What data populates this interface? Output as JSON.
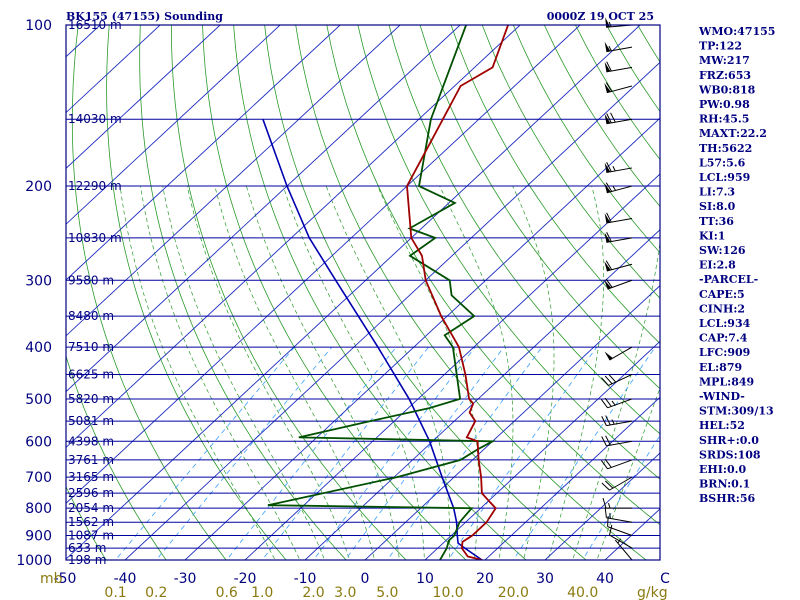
{
  "header": {
    "station": "BK155 (47155) Sounding",
    "time": "0000Z 19 OCT 25"
  },
  "chart_data": {
    "type": "skew-t",
    "pressure_levels": [
      {
        "p": 100,
        "label": "100",
        "height": "16510 m"
      },
      {
        "p": 150,
        "label": "",
        "height": "14030 m"
      },
      {
        "p": 200,
        "label": "200",
        "height": "12290 m"
      },
      {
        "p": 250,
        "label": "",
        "height": "10830 m"
      },
      {
        "p": 300,
        "label": "300",
        "height": "9580 m"
      },
      {
        "p": 350,
        "label": "",
        "height": "8480 m"
      },
      {
        "p": 400,
        "label": "400",
        "height": "7510 m"
      },
      {
        "p": 450,
        "label": "",
        "height": "6625 m"
      },
      {
        "p": 500,
        "label": "500",
        "height": "5820 m"
      },
      {
        "p": 550,
        "label": "",
        "height": "5081 m"
      },
      {
        "p": 600,
        "label": "600",
        "height": "4398 m"
      },
      {
        "p": 650,
        "label": "",
        "height": "3761 m"
      },
      {
        "p": 700,
        "label": "700",
        "height": "3165 m"
      },
      {
        "p": 750,
        "label": "",
        "height": "2596 m"
      },
      {
        "p": 800,
        "label": "800",
        "height": "2054 m"
      },
      {
        "p": 850,
        "label": "",
        "height": "1562 m"
      },
      {
        "p": 900,
        "label": "900",
        "height": "1087 m"
      },
      {
        "p": 950,
        "label": "",
        "height": "633 m"
      },
      {
        "p": 1000,
        "label": "1000",
        "height": "198 m"
      }
    ],
    "pressure_unit": "mb",
    "temp_ticks": [
      {
        "t": -50,
        "label": "-50"
      },
      {
        "t": -40,
        "label": "-40"
      },
      {
        "t": -30,
        "label": "-30"
      },
      {
        "t": -20,
        "label": "-20"
      },
      {
        "t": -10,
        "label": "-10"
      },
      {
        "t": 0,
        "label": "0"
      },
      {
        "t": 10,
        "label": "10"
      },
      {
        "t": 20,
        "label": "20"
      },
      {
        "t": 30,
        "label": "30"
      },
      {
        "t": 40,
        "label": "40"
      },
      {
        "t": 50,
        "label": "C"
      }
    ],
    "mixing_ratio_labels": [
      "0.1",
      "0.2",
      "0.6",
      "1.0",
      "2.0",
      "3.0",
      "5.0",
      "10.0",
      "20.0",
      "40.0"
    ],
    "mixing_ratio_values": [
      0.1,
      0.2,
      0.6,
      1.0,
      2.0,
      3.0,
      5.0,
      10.0,
      20.0,
      40.0
    ],
    "mixing_ratio_unit": "g/kg",
    "temperature": [
      {
        "p": 1000,
        "t": 19.5
      },
      {
        "p": 985,
        "t": 16.5
      },
      {
        "p": 950,
        "t": 14.0
      },
      {
        "p": 925,
        "t": 13.0
      },
      {
        "p": 900,
        "t": 13.5
      },
      {
        "p": 850,
        "t": 13.5
      },
      {
        "p": 800,
        "t": 12.5
      },
      {
        "p": 780,
        "t": 10.5
      },
      {
        "p": 750,
        "t": 7.5
      },
      {
        "p": 700,
        "t": 4.5
      },
      {
        "p": 650,
        "t": 1.0
      },
      {
        "p": 600,
        "t": -2.5
      },
      {
        "p": 590,
        "t": -5.0
      },
      {
        "p": 550,
        "t": -6.5
      },
      {
        "p": 530,
        "t": -9.0
      },
      {
        "p": 510,
        "t": -10.0
      },
      {
        "p": 500,
        "t": -11.5
      },
      {
        "p": 450,
        "t": -16.5
      },
      {
        "p": 400,
        "t": -22.5
      },
      {
        "p": 350,
        "t": -31.0
      },
      {
        "p": 300,
        "t": -40.0
      },
      {
        "p": 270,
        "t": -45.0
      },
      {
        "p": 250,
        "t": -50.0
      },
      {
        "p": 200,
        "t": -60.0
      },
      {
        "p": 150,
        "t": -66.0
      },
      {
        "p": 130,
        "t": -69.0
      },
      {
        "p": 120,
        "t": -67.0
      },
      {
        "p": 100,
        "t": -72.0
      }
    ],
    "dewpoint": [
      {
        "p": 1000,
        "t": 12.5
      },
      {
        "p": 950,
        "t": 11.5
      },
      {
        "p": 920,
        "t": 10.5
      },
      {
        "p": 900,
        "t": 10.5
      },
      {
        "p": 850,
        "t": 9.0
      },
      {
        "p": 800,
        "t": 8.5
      },
      {
        "p": 790,
        "t": -26.0
      },
      {
        "p": 700,
        "t": -9.5
      },
      {
        "p": 650,
        "t": -2.0
      },
      {
        "p": 620,
        "t": -1.0
      },
      {
        "p": 600,
        "t": 0.0
      },
      {
        "p": 590,
        "t": -33.0
      },
      {
        "p": 550,
        "t": -24.0
      },
      {
        "p": 520,
        "t": -16.5
      },
      {
        "p": 500,
        "t": -13.0
      },
      {
        "p": 400,
        "t": -23.5
      },
      {
        "p": 380,
        "t": -27.0
      },
      {
        "p": 350,
        "t": -25.5
      },
      {
        "p": 320,
        "t": -33.0
      },
      {
        "p": 300,
        "t": -36.0
      },
      {
        "p": 270,
        "t": -47.0
      },
      {
        "p": 250,
        "t": -46.0
      },
      {
        "p": 240,
        "t": -52.0
      },
      {
        "p": 215,
        "t": -49.0
      },
      {
        "p": 200,
        "t": -58.0
      },
      {
        "p": 150,
        "t": -68.0
      },
      {
        "p": 100,
        "t": -79.0
      }
    ],
    "parcel": [
      {
        "p": 1000,
        "t": 19.5
      },
      {
        "p": 950,
        "t": 14.5
      },
      {
        "p": 930,
        "t": 12.5
      },
      {
        "p": 900,
        "t": 11.0
      },
      {
        "p": 850,
        "t": 8.5
      },
      {
        "p": 800,
        "t": 5.5
      },
      {
        "p": 700,
        "t": -2.0
      },
      {
        "p": 600,
        "t": -10.5
      },
      {
        "p": 500,
        "t": -21.5
      },
      {
        "p": 400,
        "t": -36.0
      },
      {
        "p": 300,
        "t": -55.0
      },
      {
        "p": 250,
        "t": -67.0
      },
      {
        "p": 200,
        "t": -80.0
      },
      {
        "p": 150,
        "t": -96.0
      }
    ],
    "wind_barbs": [
      {
        "p": 1000,
        "dir": 320,
        "spd": 5
      },
      {
        "p": 950,
        "dir": 300,
        "spd": 10
      },
      {
        "p": 900,
        "dir": 290,
        "spd": 10
      },
      {
        "p": 850,
        "dir": 280,
        "spd": 15
      },
      {
        "p": 800,
        "dir": 270,
        "spd": 15
      },
      {
        "p": 700,
        "dir": 240,
        "spd": 20
      },
      {
        "p": 650,
        "dir": 250,
        "spd": 20
      },
      {
        "p": 600,
        "dir": 260,
        "spd": 20
      },
      {
        "p": 550,
        "dir": 260,
        "spd": 25
      },
      {
        "p": 500,
        "dir": 250,
        "spd": 25
      },
      {
        "p": 450,
        "dir": 245,
        "spd": 30
      },
      {
        "p": 400,
        "dir": 240,
        "spd": 50
      },
      {
        "p": 300,
        "dir": 250,
        "spd": 60
      },
      {
        "p": 280,
        "dir": 255,
        "spd": 60
      },
      {
        "p": 250,
        "dir": 260,
        "spd": 60
      },
      {
        "p": 230,
        "dir": 260,
        "spd": 60
      },
      {
        "p": 200,
        "dir": 255,
        "spd": 65
      },
      {
        "p": 185,
        "dir": 260,
        "spd": 65
      },
      {
        "p": 150,
        "dir": 260,
        "spd": 70
      },
      {
        "p": 130,
        "dir": 255,
        "spd": 60
      },
      {
        "p": 120,
        "dir": 260,
        "spd": 60
      },
      {
        "p": 110,
        "dir": 260,
        "spd": 55
      },
      {
        "p": 100,
        "dir": 265,
        "spd": 55
      }
    ],
    "colors": {
      "frame": "#000080",
      "isobar": "#0000a0",
      "isotherm": "#1c2cc0",
      "dry_adiabat": "#2a9a2a",
      "moist_adiabat": "#2a9a2a",
      "mixing_ratio": "#3aa0ff",
      "temperature": "#a00000",
      "dewpoint": "#005000",
      "parcel": "#0000b0",
      "barb": "#000000"
    }
  },
  "indices": [
    "WMO:47155",
    "TP:122",
    "MW:217",
    "FRZ:653",
    "WB0:818",
    "PW:0.98",
    "RH:45.5",
    "MAXT:22.2",
    "TH:5622",
    "L57:5.6",
    "LCL:959",
    "LI:7.3",
    "SI:8.0",
    "TT:36",
    "KI:1",
    "SW:126",
    "EI:2.8",
    "-PARCEL-",
    "CAPE:5",
    "CINH:2",
    "LCL:934",
    "CAP:7.4",
    "LFC:909",
    "EL:879",
    "MPL:849",
    "-WIND-",
    "STM:309/13",
    "HEL:52",
    "SHR+:0.0",
    "SRDS:108",
    "EHI:0.0",
    "BRN:0.1",
    "BSHR:56"
  ]
}
